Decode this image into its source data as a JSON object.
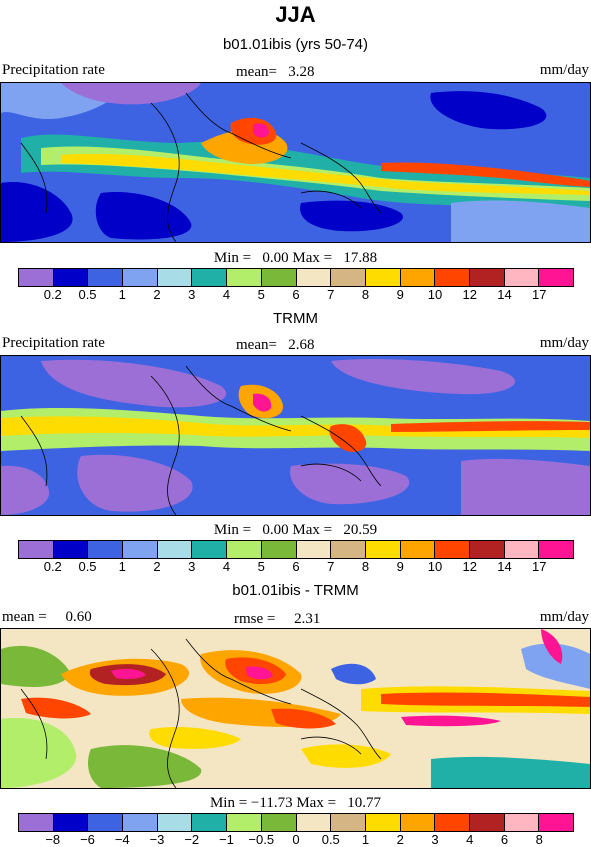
{
  "title": "JJA",
  "panels": [
    {
      "subtitle": "b01.01ibis (yrs 50-74)",
      "left_label": "Precipitation rate",
      "center_label": "mean=   3.28",
      "right_label": "mm/day",
      "minmax": "Min =   0.00 Max =   17.88"
    },
    {
      "subtitle": "TRMM",
      "left_label": "Precipitation rate",
      "center_label": "mean=   2.68",
      "right_label": "mm/day",
      "minmax": "Min =   0.00 Max =   20.59"
    },
    {
      "subtitle": "b01.01ibis - TRMM",
      "left_label": "mean =     0.60",
      "center_label": "rmse =     2.31",
      "right_label": "mm/day",
      "minmax": "Min = −11.73 Max =   10.77"
    }
  ],
  "chart_data": [
    {
      "type": "heatmap",
      "title": "b01.01ibis (yrs 50-74)",
      "variable": "Precipitation rate",
      "units": "mm/day",
      "mean": 3.28,
      "min": 0.0,
      "max": 17.88,
      "colorbar_levels": [
        "0.2",
        "0.5",
        "1",
        "2",
        "3",
        "4",
        "5",
        "6",
        "7",
        "8",
        "9",
        "10",
        "12",
        "14",
        "17"
      ],
      "colorbar_colors": [
        "#9b6fd6",
        "#0000c8",
        "#3d63e3",
        "#7fa3f0",
        "#a8dce6",
        "#20b0a8",
        "#b3ee6a",
        "#7ab83a",
        "#f5e6c3",
        "#d6b585",
        "#ffdc00",
        "#ffa500",
        "#ff4500",
        "#b22222",
        "#ffb6c1",
        "#ff1493"
      ]
    },
    {
      "type": "heatmap",
      "title": "TRMM",
      "variable": "Precipitation rate",
      "units": "mm/day",
      "mean": 2.68,
      "min": 0.0,
      "max": 20.59,
      "colorbar_levels": [
        "0.2",
        "0.5",
        "1",
        "2",
        "3",
        "4",
        "5",
        "6",
        "7",
        "8",
        "9",
        "10",
        "12",
        "14",
        "17"
      ],
      "colorbar_colors": [
        "#9b6fd6",
        "#0000c8",
        "#3d63e3",
        "#7fa3f0",
        "#a8dce6",
        "#20b0a8",
        "#b3ee6a",
        "#7ab83a",
        "#f5e6c3",
        "#d6b585",
        "#ffdc00",
        "#ffa500",
        "#ff4500",
        "#b22222",
        "#ffb6c1",
        "#ff1493"
      ]
    },
    {
      "type": "heatmap",
      "title": "b01.01ibis - TRMM",
      "units": "mm/day",
      "mean": 0.6,
      "rmse": 2.31,
      "min": -11.73,
      "max": 10.77,
      "colorbar_levels": [
        "−8",
        "−6",
        "−4",
        "−3",
        "−2",
        "−1",
        "−0.5",
        "0",
        "0.5",
        "1",
        "2",
        "3",
        "4",
        "6",
        "8"
      ],
      "colorbar_colors": [
        "#9b6fd6",
        "#0000c8",
        "#3d63e3",
        "#7fa3f0",
        "#a8dce6",
        "#20b0a8",
        "#b3ee6a",
        "#7ab83a",
        "#f5e6c3",
        "#d6b585",
        "#ffdc00",
        "#ffa500",
        "#ff4500",
        "#b22222",
        "#ffb6c1",
        "#ff1493"
      ]
    }
  ]
}
